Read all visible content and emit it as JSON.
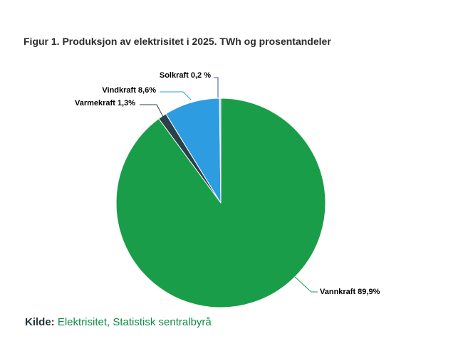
{
  "chart_data": {
    "type": "pie",
    "title": "Figur 1. Produksjon av elektrisitet i 2025. TWh og prosentandeler",
    "categories": [
      "Vannkraft",
      "Varmekraft",
      "Vindkraft",
      "Solkraft"
    ],
    "values": [
      89.9,
      1.3,
      8.6,
      0.2
    ],
    "unit": "%",
    "start_angle_deg": 0,
    "direction": "clockwise",
    "legend": "none",
    "colors": [
      "#1a9d49",
      "#2a414b",
      "#2d9ce0",
      "#b5bfc6"
    ],
    "slice_labels": {
      "vannkraft": "Vannkraft 89,9%",
      "varmekraft": "Varmekraft 1,3%",
      "vindkraft": "Vindkraft 8,6%",
      "solkraft": "Solkraft 0,2 %"
    },
    "source": "Kilde: Elektrisitet, Statistisk sentralbyrå"
  },
  "footer": {
    "source_prefix": "Kilde:",
    "source_link": "Elektrisitet, Statistisk sentralbyrå"
  },
  "theme": {
    "background": "#ffffff",
    "title_color": "#2b2b2b",
    "label_color": "#000000",
    "slice_border_color": "#ffffff",
    "source_prefix_color": "#26353b",
    "source_link_color": "#0d8c46",
    "connector_colors": {
      "vannkraft": "#1a9d49",
      "varmekraft": "#2a414b",
      "vindkraft": "#2d9ce0",
      "solkraft": "#3a51a3"
    }
  }
}
